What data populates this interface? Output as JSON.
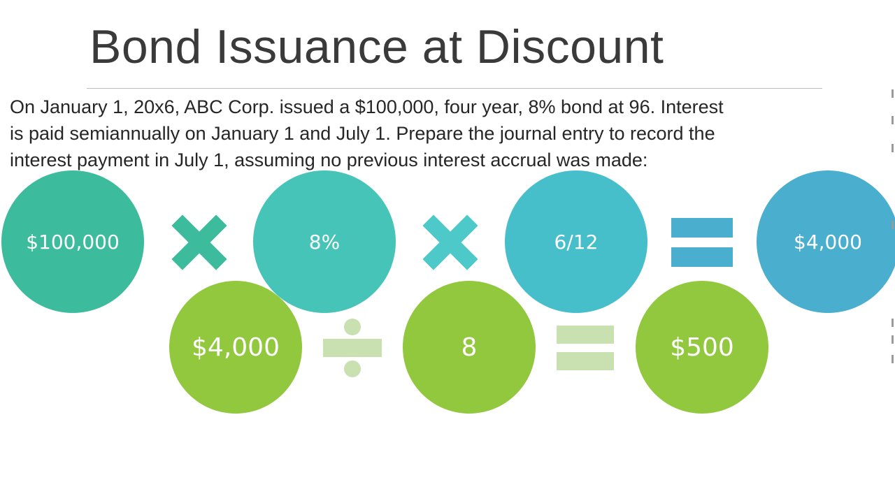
{
  "slide": {
    "title": "Bond Issuance at Discount",
    "problem_lines": [
      "On January 1, 20x6, ABC Corp. issued a $100,000, four year, 8% bond at 96.  Interest",
      "is paid semiannually on January 1 and July 1.  Prepare the journal entry to record the",
      "interest payment in July 1, assuming no previous interest accrual was made:"
    ]
  },
  "equation1": {
    "face_value": "$100,000",
    "rate": "8%",
    "period": "6/12",
    "result": "$4,000",
    "operators": [
      "multiply-icon",
      "multiply-icon",
      "equals-icon"
    ]
  },
  "equation2": {
    "interest": "$4,000",
    "periods": "8",
    "result": "$500",
    "operators": [
      "divide-icon",
      "equals-icon"
    ]
  },
  "colors": {
    "title": "#3a3a3a",
    "circle_face_value": "#3dbb9d",
    "circle_rate": "#46c4b8",
    "circle_period": "#47bfcb",
    "circle_result1": "#4aaecf",
    "multiply_1": "#3dbb9d",
    "multiply_2": "#4ec9c9",
    "equals_1": "#4aaecf",
    "circle_row2": "#92c83e",
    "divide": "#c9e0b0",
    "equals_2": "#c9e0b0"
  }
}
